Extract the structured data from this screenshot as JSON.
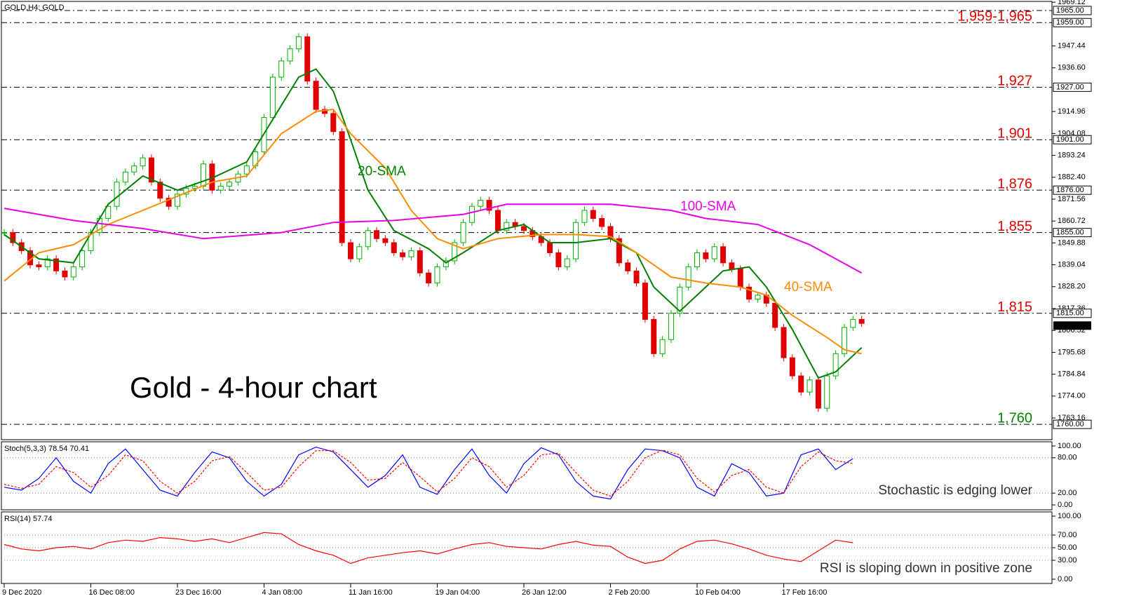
{
  "chart_data": [
    {
      "type": "candlestick",
      "header": "GOLD,H4: GOLD",
      "title": "Gold - 4-hour chart",
      "categories": [
        "9 Dec 2020",
        null,
        null,
        null,
        null,
        null,
        null,
        null,
        null,
        null,
        "16 Dec 08:00",
        null,
        null,
        null,
        null,
        null,
        null,
        null,
        null,
        null,
        "23 Dec 16:00",
        null,
        null,
        null,
        null,
        null,
        null,
        null,
        null,
        null,
        "4 Jan 08:00",
        null,
        null,
        null,
        null,
        null,
        null,
        null,
        null,
        null,
        "11 Jan 16:00",
        null,
        null,
        null,
        null,
        null,
        null,
        null,
        null,
        null,
        "19 Jan 04:00",
        null,
        null,
        null,
        null,
        null,
        null,
        null,
        null,
        null,
        "26 Jan 12:00",
        null,
        null,
        null,
        null,
        null,
        null,
        null,
        null,
        null,
        "2 Feb 20:00",
        null,
        null,
        null,
        null,
        null,
        null,
        null,
        null,
        null,
        "10 Feb 04:00",
        null,
        null,
        null,
        null,
        null,
        null,
        null,
        null,
        null,
        "17 Feb 16:00",
        null,
        null,
        null,
        null,
        null,
        null,
        null,
        null,
        null
      ],
      "values": [
        1855,
        1850,
        1846,
        1839,
        1838,
        1842,
        1836,
        1833,
        1838,
        1846,
        1855,
        1862,
        1868,
        1880,
        1885,
        1888,
        1892,
        1880,
        1872,
        1868,
        1874,
        1877,
        1878,
        1889,
        1876,
        1878,
        1880,
        1884,
        1888,
        1895,
        1912,
        1932,
        1940,
        1946,
        1952,
        1930,
        1916,
        1914,
        1905,
        1850,
        1842,
        1848,
        1856,
        1852,
        1850,
        1845,
        1843,
        1846,
        1835,
        1830,
        1838,
        1841,
        1850,
        1860,
        1868,
        1871,
        1866,
        1856,
        1860,
        1858,
        1856,
        1853,
        1850,
        1845,
        1838,
        1842,
        1860,
        1866,
        1862,
        1858,
        1852,
        1840,
        1836,
        1830,
        1812,
        1795,
        1802,
        1815,
        1828,
        1838,
        1845,
        1842,
        1848,
        1840,
        1837,
        1828,
        1822,
        1824,
        1820,
        1808,
        1793,
        1784,
        1776,
        1782,
        1768,
        1784,
        1795,
        1808,
        1812,
        1810
      ],
      "up_color": "#00b000",
      "down_color": "#e00000",
      "series": [
        {
          "name": "20-SMA",
          "color": "#008000",
          "x": [
            0,
            4,
            8,
            12,
            16,
            20,
            24,
            28,
            32,
            34,
            36,
            38,
            40,
            42,
            45,
            49,
            51,
            53,
            57,
            60,
            63,
            66,
            70,
            73,
            75,
            78,
            80,
            83,
            86,
            88,
            91,
            94,
            96,
            99
          ],
          "values": [
            1854,
            1842,
            1840,
            1869,
            1883,
            1876,
            1882,
            1890,
            1918,
            1932,
            1936,
            1925,
            1901,
            1876,
            1856,
            1847,
            1840,
            1845,
            1856,
            1859,
            1850,
            1850,
            1852,
            1845,
            1828,
            1816,
            1824,
            1836,
            1838,
            1828,
            1807,
            1783,
            1786,
            1798
          ]
        },
        {
          "name": "40-SMA",
          "color": "#ff8c00",
          "x": [
            0,
            4,
            8,
            12,
            16,
            20,
            24,
            28,
            32,
            36,
            38,
            40,
            44,
            47,
            50,
            53,
            57,
            62,
            66,
            70,
            73,
            77,
            81,
            85,
            88,
            91,
            95,
            97,
            99
          ],
          "values": [
            1831,
            1845,
            1849,
            1859,
            1866,
            1873,
            1880,
            1883,
            1904,
            1915,
            1916,
            1904,
            1887,
            1866,
            1852,
            1847,
            1852,
            1854,
            1854,
            1853,
            1845,
            1833,
            1830,
            1828,
            1824,
            1814,
            1803,
            1797,
            1795
          ]
        },
        {
          "name": "100-SMA",
          "color": "#e600e6",
          "x": [
            0,
            8,
            16,
            23,
            32,
            38,
            45,
            53,
            58,
            65,
            70,
            77,
            81,
            87,
            93,
            99
          ],
          "values": [
            1867,
            1861,
            1857,
            1852,
            1855,
            1860,
            1861,
            1864,
            1869,
            1869,
            1869,
            1866,
            1862,
            1859,
            1849,
            1835
          ]
        }
      ],
      "ylim": [
        1752.4,
        1970.2
      ],
      "yticks": [
        1969.12,
        1947.44,
        {
          "value": 1936.6,
          "label": "1936.60"
        },
        1914.96,
        1904.08,
        1893.24,
        {
          "value": 1882.4,
          "label": "1882.40"
        },
        1871.56,
        1860.72,
        1849.88,
        1839.04,
        {
          "value": 1828.2,
          "label": "1828.20"
        },
        1817.36,
        1806.52,
        1795.68,
        1784.84,
        {
          "value": 1774,
          "label": "1774.00"
        },
        1763.16
      ],
      "levels": [
        {
          "value": 1965,
          "label": "1965.00"
        },
        {
          "value": 1959,
          "label": "1959.00",
          "annotation": "1,959-1,965",
          "annotation_color": "#e00000"
        },
        {
          "value": 1927,
          "label": "1927.00",
          "annotation": "1,927",
          "annotation_color": "#e00000"
        },
        {
          "value": 1901,
          "label": "1901.00",
          "annotation": "1,901",
          "annotation_color": "#e00000"
        },
        {
          "value": 1876,
          "label": "1876.00",
          "annotation": "1,876",
          "annotation_color": "#e00000"
        },
        {
          "value": 1855,
          "label": "1855.00",
          "annotation": "1,855",
          "annotation_color": "#e00000"
        },
        {
          "value": 1815,
          "label": "1815.00",
          "annotation": "1,815",
          "annotation_color": "#e00000"
        },
        {
          "value": 1760,
          "label": "1760.00",
          "annotation": "1,760",
          "annotation_color": "#008000"
        }
      ],
      "last": {
        "value": 1808.91,
        "label": "1808.91"
      }
    },
    {
      "type": "line",
      "title": "Stoch(5,3,3) 78.54 70.41",
      "annotation": "Stochastic is edging lower",
      "x": [
        0,
        2,
        4,
        6,
        8,
        10,
        12,
        14,
        16,
        18,
        20,
        22,
        24,
        26,
        28,
        30,
        32,
        34,
        36,
        38,
        40,
        42,
        44,
        46,
        48,
        50,
        52,
        54,
        56,
        58,
        60,
        62,
        64,
        66,
        68,
        70,
        72,
        74,
        76,
        78,
        80,
        82,
        84,
        86,
        88,
        90,
        92,
        94,
        96,
        98
      ],
      "series": [
        {
          "color": "#0000ff",
          "values": [
            30,
            25,
            45,
            80,
            40,
            20,
            70,
            95,
            60,
            25,
            15,
            55,
            90,
            80,
            40,
            15,
            35,
            85,
            98,
            90,
            60,
            30,
            50,
            85,
            30,
            18,
            60,
            95,
            50,
            20,
            70,
            97,
            85,
            40,
            15,
            10,
            60,
            95,
            92,
            80,
            30,
            15,
            70,
            55,
            15,
            20,
            85,
            95,
            60,
            78.54
          ]
        },
        {
          "color": "#ff0000",
          "dashed": true,
          "values": [
            35,
            28,
            35,
            65,
            55,
            30,
            50,
            85,
            75,
            40,
            20,
            40,
            75,
            82,
            55,
            25,
            30,
            65,
            92,
            92,
            72,
            42,
            45,
            72,
            48,
            22,
            45,
            80,
            65,
            30,
            50,
            85,
            88,
            55,
            25,
            15,
            40,
            80,
            93,
            85,
            45,
            22,
            50,
            60,
            30,
            20,
            65,
            90,
            75,
            70.41
          ]
        }
      ],
      "ylim": [
        -8.3,
        107.1
      ],
      "yticks": [
        {
          "value": 100,
          "label": "100.00"
        },
        {
          "value": 80,
          "label": "80.00"
        },
        {
          "value": 20,
          "label": "20.00"
        },
        {
          "value": 0,
          "label": "0.00"
        }
      ]
    },
    {
      "type": "line",
      "title": "RSI(14) 57.74",
      "annotation": "RSI is sloping down in positive zone",
      "x": [
        0,
        2,
        4,
        6,
        8,
        10,
        12,
        14,
        16,
        18,
        20,
        22,
        24,
        26,
        28,
        30,
        32,
        34,
        36,
        38,
        40,
        42,
        44,
        46,
        48,
        50,
        52,
        54,
        56,
        58,
        60,
        62,
        64,
        66,
        68,
        70,
        72,
        74,
        76,
        78,
        80,
        82,
        84,
        86,
        88,
        90,
        92,
        94,
        96,
        98
      ],
      "series": [
        {
          "color": "#ff0000",
          "values": [
            55,
            48,
            45,
            50,
            52,
            48,
            58,
            62,
            60,
            66,
            64,
            60,
            64,
            58,
            66,
            74,
            72,
            55,
            45,
            38,
            25,
            34,
            38,
            42,
            45,
            40,
            48,
            55,
            58,
            52,
            50,
            48,
            55,
            60,
            54,
            52,
            35,
            25,
            30,
            48,
            60,
            62,
            56,
            48,
            38,
            32,
            28,
            45,
            62,
            57.74
          ]
        }
      ],
      "ylim": [
        -6.7,
        106.7
      ],
      "yticks": [
        {
          "value": 100,
          "label": "100.00"
        },
        {
          "value": 70,
          "label": "70.00"
        },
        {
          "value": 50,
          "label": "50.00"
        },
        {
          "value": 30,
          "label": "30.00"
        },
        {
          "value": 0,
          "label": "0.00"
        }
      ]
    }
  ]
}
